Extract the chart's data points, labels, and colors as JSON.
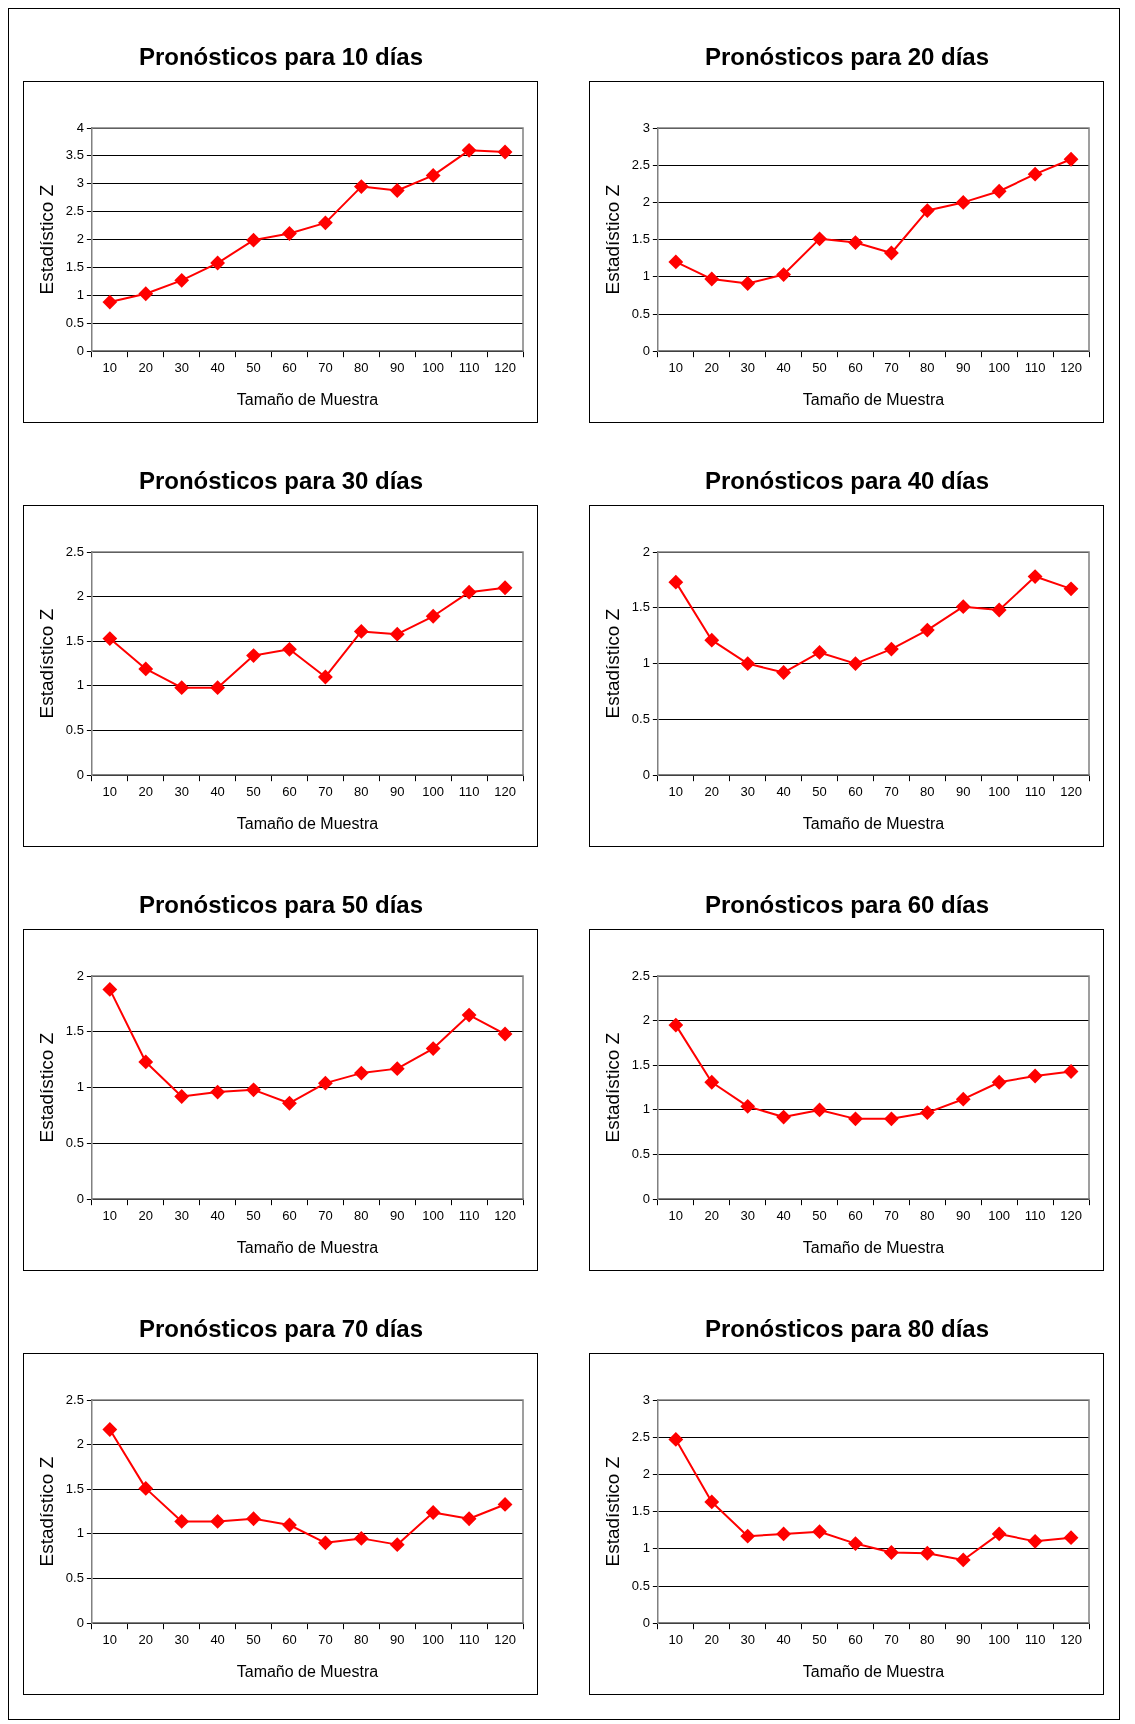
{
  "chart_data": [
    {
      "type": "line",
      "title": "Pronósticos para 10 días",
      "xlabel": "Tamaño de Muestra",
      "ylabel": "Estadístico Z",
      "categories": [
        "10",
        "20",
        "30",
        "40",
        "50",
        "60",
        "70",
        "80",
        "90",
        "100",
        "110",
        "120"
      ],
      "series": [
        {
          "color": "#ff0000",
          "values": [
            0.88,
            1.03,
            1.27,
            1.58,
            1.99,
            2.11,
            2.3,
            2.95,
            2.88,
            3.15,
            3.6,
            3.57
          ]
        }
      ],
      "ylim": [
        0,
        4
      ],
      "yticks": [
        0,
        0.5,
        1,
        1.5,
        2,
        2.5,
        3,
        3.5,
        4
      ],
      "grid": "y",
      "legend": false,
      "marker": "diamond",
      "line_style": "solid"
    },
    {
      "type": "line",
      "title": "Pronósticos para 20 días",
      "xlabel": "Tamaño de Muestra",
      "ylabel": "Estadístico Z",
      "categories": [
        "10",
        "20",
        "30",
        "40",
        "50",
        "60",
        "70",
        "80",
        "90",
        "100",
        "110",
        "120"
      ],
      "series": [
        {
          "color": "#ff0000",
          "values": [
            1.2,
            0.97,
            0.91,
            1.03,
            1.51,
            1.46,
            1.32,
            1.89,
            2.0,
            2.15,
            2.38,
            2.58
          ]
        }
      ],
      "ylim": [
        0,
        3
      ],
      "yticks": [
        0,
        0.5,
        1,
        1.5,
        2,
        2.5,
        3
      ],
      "grid": "y",
      "legend": false,
      "marker": "diamond",
      "line_style": "solid"
    },
    {
      "type": "line",
      "title": "Pronósticos para 30 días",
      "xlabel": "Tamaño de Muestra",
      "ylabel": "Estadístico Z",
      "categories": [
        "10",
        "20",
        "30",
        "40",
        "50",
        "60",
        "70",
        "80",
        "90",
        "100",
        "110",
        "120"
      ],
      "series": [
        {
          "color": "#ff0000",
          "values": [
            1.53,
            1.19,
            0.98,
            0.98,
            1.34,
            1.41,
            1.1,
            1.61,
            1.58,
            1.78,
            2.05,
            2.1
          ]
        }
      ],
      "ylim": [
        0,
        2.5
      ],
      "yticks": [
        0,
        0.5,
        1,
        1.5,
        2,
        2.5
      ],
      "grid": "y",
      "legend": false,
      "marker": "diamond",
      "line_style": "solid"
    },
    {
      "type": "line",
      "title": "Pronósticos para 40 días",
      "xlabel": "Tamaño de Muestra",
      "ylabel": "Estadístico Z",
      "categories": [
        "10",
        "20",
        "30",
        "40",
        "50",
        "60",
        "70",
        "80",
        "90",
        "100",
        "110",
        "120"
      ],
      "series": [
        {
          "color": "#ff0000",
          "values": [
            1.73,
            1.21,
            1.0,
            0.92,
            1.1,
            1.0,
            1.13,
            1.3,
            1.51,
            1.48,
            1.78,
            1.67
          ]
        }
      ],
      "ylim": [
        0,
        2
      ],
      "yticks": [
        0,
        0.5,
        1,
        1.5,
        2
      ],
      "grid": "y",
      "legend": false,
      "marker": "diamond",
      "line_style": "solid"
    },
    {
      "type": "line",
      "title": "Pronósticos para 50 días",
      "xlabel": "Tamaño de Muestra",
      "ylabel": "Estadístico Z",
      "categories": [
        "10",
        "20",
        "30",
        "40",
        "50",
        "60",
        "70",
        "80",
        "90",
        "100",
        "110",
        "120"
      ],
      "series": [
        {
          "color": "#ff0000",
          "values": [
            1.88,
            1.23,
            0.92,
            0.96,
            0.98,
            0.86,
            1.04,
            1.13,
            1.17,
            1.35,
            1.65,
            1.48
          ]
        }
      ],
      "ylim": [
        0,
        2
      ],
      "yticks": [
        0,
        0.5,
        1,
        1.5,
        2
      ],
      "grid": "y",
      "legend": false,
      "marker": "diamond",
      "line_style": "solid"
    },
    {
      "type": "line",
      "title": "Pronósticos para 60 días",
      "xlabel": "Tamaño de Muestra",
      "ylabel": "Estadístico Z",
      "categories": [
        "10",
        "20",
        "30",
        "40",
        "50",
        "60",
        "70",
        "80",
        "90",
        "100",
        "110",
        "120"
      ],
      "series": [
        {
          "color": "#ff0000",
          "values": [
            1.95,
            1.31,
            1.04,
            0.92,
            1.0,
            0.9,
            0.9,
            0.97,
            1.12,
            1.31,
            1.38,
            1.43
          ]
        }
      ],
      "ylim": [
        0,
        2.5
      ],
      "yticks": [
        0,
        0.5,
        1,
        1.5,
        2,
        2.5
      ],
      "grid": "y",
      "legend": false,
      "marker": "diamond",
      "line_style": "solid"
    },
    {
      "type": "line",
      "title": "Pronósticos para 70 días",
      "xlabel": "Tamaño de Muestra",
      "ylabel": "Estadístico Z",
      "categories": [
        "10",
        "20",
        "30",
        "40",
        "50",
        "60",
        "70",
        "80",
        "90",
        "100",
        "110",
        "120"
      ],
      "series": [
        {
          "color": "#ff0000",
          "values": [
            2.17,
            1.51,
            1.14,
            1.14,
            1.17,
            1.1,
            0.9,
            0.95,
            0.88,
            1.24,
            1.17,
            1.33
          ]
        }
      ],
      "ylim": [
        0,
        2.5
      ],
      "yticks": [
        0,
        0.5,
        1,
        1.5,
        2,
        2.5
      ],
      "grid": "y",
      "legend": false,
      "marker": "diamond",
      "line_style": "solid"
    },
    {
      "type": "line",
      "title": "Pronósticos para 80 días",
      "xlabel": "Tamaño de Muestra",
      "ylabel": "Estadístico Z",
      "categories": [
        "10",
        "20",
        "30",
        "40",
        "50",
        "60",
        "70",
        "80",
        "90",
        "100",
        "110",
        "120"
      ],
      "series": [
        {
          "color": "#ff0000",
          "values": [
            2.47,
            1.63,
            1.17,
            1.2,
            1.23,
            1.07,
            0.95,
            0.94,
            0.85,
            1.2,
            1.1,
            1.15
          ]
        }
      ],
      "ylim": [
        0,
        3
      ],
      "yticks": [
        0,
        0.5,
        1,
        1.5,
        2,
        2.5,
        3
      ],
      "grid": "y",
      "legend": false,
      "marker": "diamond",
      "line_style": "solid"
    }
  ]
}
